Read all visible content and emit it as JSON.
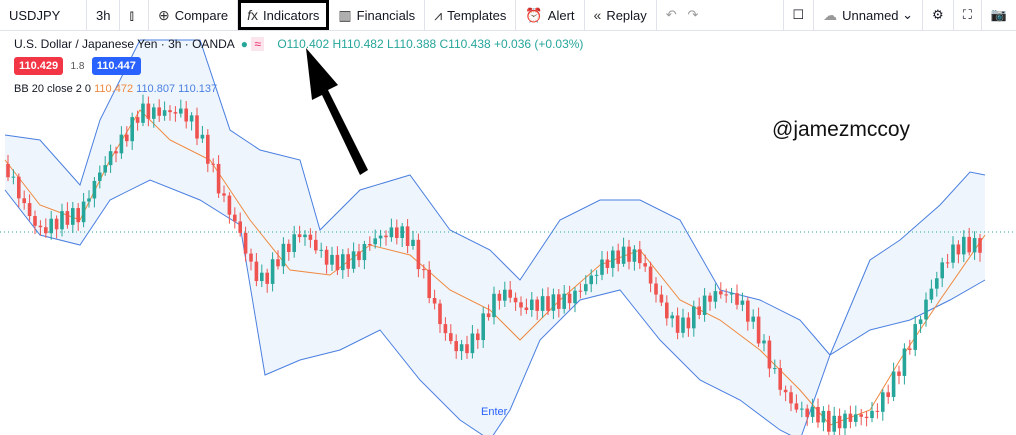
{
  "toolbar": {
    "symbol": "USDJPY",
    "interval": "3h",
    "compare": "Compare",
    "indicators": "Indicators",
    "financials": "Financials",
    "templates": "Templates",
    "alert": "Alert",
    "replay": "Replay",
    "layout": "Unnamed"
  },
  "legend": {
    "title": "U.S. Dollar / Japanese Yen · 3h · OANDA",
    "open": "O110.402",
    "high": "H110.482",
    "low": "L110.388",
    "close": "C110.438",
    "change": "+0.036 (+0.03%)",
    "sell": "110.429",
    "spread": "1.8",
    "buy": "110.447"
  },
  "indicator": {
    "name": "BB 20 close 2 0",
    "basis": "110.472",
    "upper": "110.807",
    "lower": "110.137"
  },
  "watermark": "@jamezmccoy",
  "marker": "Enter"
}
